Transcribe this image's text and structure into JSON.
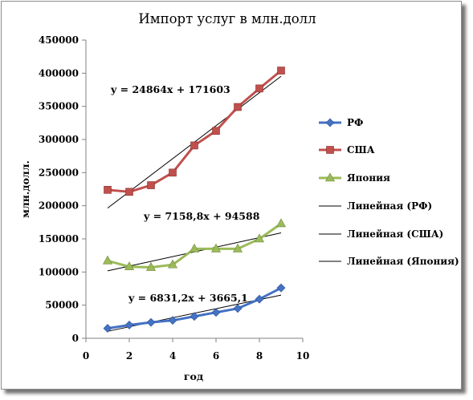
{
  "chart_data": {
    "type": "line",
    "title": "Импорт услуг в млн.долл",
    "xlabel": "год",
    "ylabel": "млн.долл.",
    "xlim": [
      0,
      10
    ],
    "ylim": [
      0,
      450000
    ],
    "x_ticks": [
      "0",
      "2",
      "4",
      "6",
      "8",
      "10"
    ],
    "y_ticks": [
      "0",
      "50000",
      "100000",
      "150000",
      "200000",
      "250000",
      "300000",
      "350000",
      "400000",
      "450000"
    ],
    "x": [
      1,
      2,
      3,
      4,
      5,
      6,
      7,
      8,
      9
    ],
    "series": [
      {
        "name": "РФ",
        "color": "#4472c4",
        "marker": "diamond",
        "values": [
          15000,
          20000,
          24000,
          27000,
          33000,
          39000,
          45000,
          59000,
          76000
        ]
      },
      {
        "name": "США",
        "color": "#c0504d",
        "marker": "square",
        "values": [
          224000,
          221000,
          231000,
          250000,
          291000,
          313000,
          349000,
          377000,
          404000
        ]
      },
      {
        "name": "Япония",
        "color": "#9bbb59",
        "marker": "triangle",
        "values": [
          117000,
          108000,
          107000,
          111000,
          135000,
          135000,
          135000,
          150000,
          173000
        ]
      }
    ],
    "trendlines": [
      {
        "name": "Линейная (РФ)",
        "slope": 6831.2,
        "intercept": 3665.1,
        "equation": "y = 6831,2x + 3665,1"
      },
      {
        "name": "Линейная (США)",
        "slope": 24864,
        "intercept": 171603,
        "equation": "y = 24864x + 171603"
      },
      {
        "name": "Линейная (Япония)",
        "slope": 7158.8,
        "intercept": 94588,
        "equation": "y = 7158,8x + 94588"
      }
    ],
    "grid": false,
    "legend": "right"
  }
}
